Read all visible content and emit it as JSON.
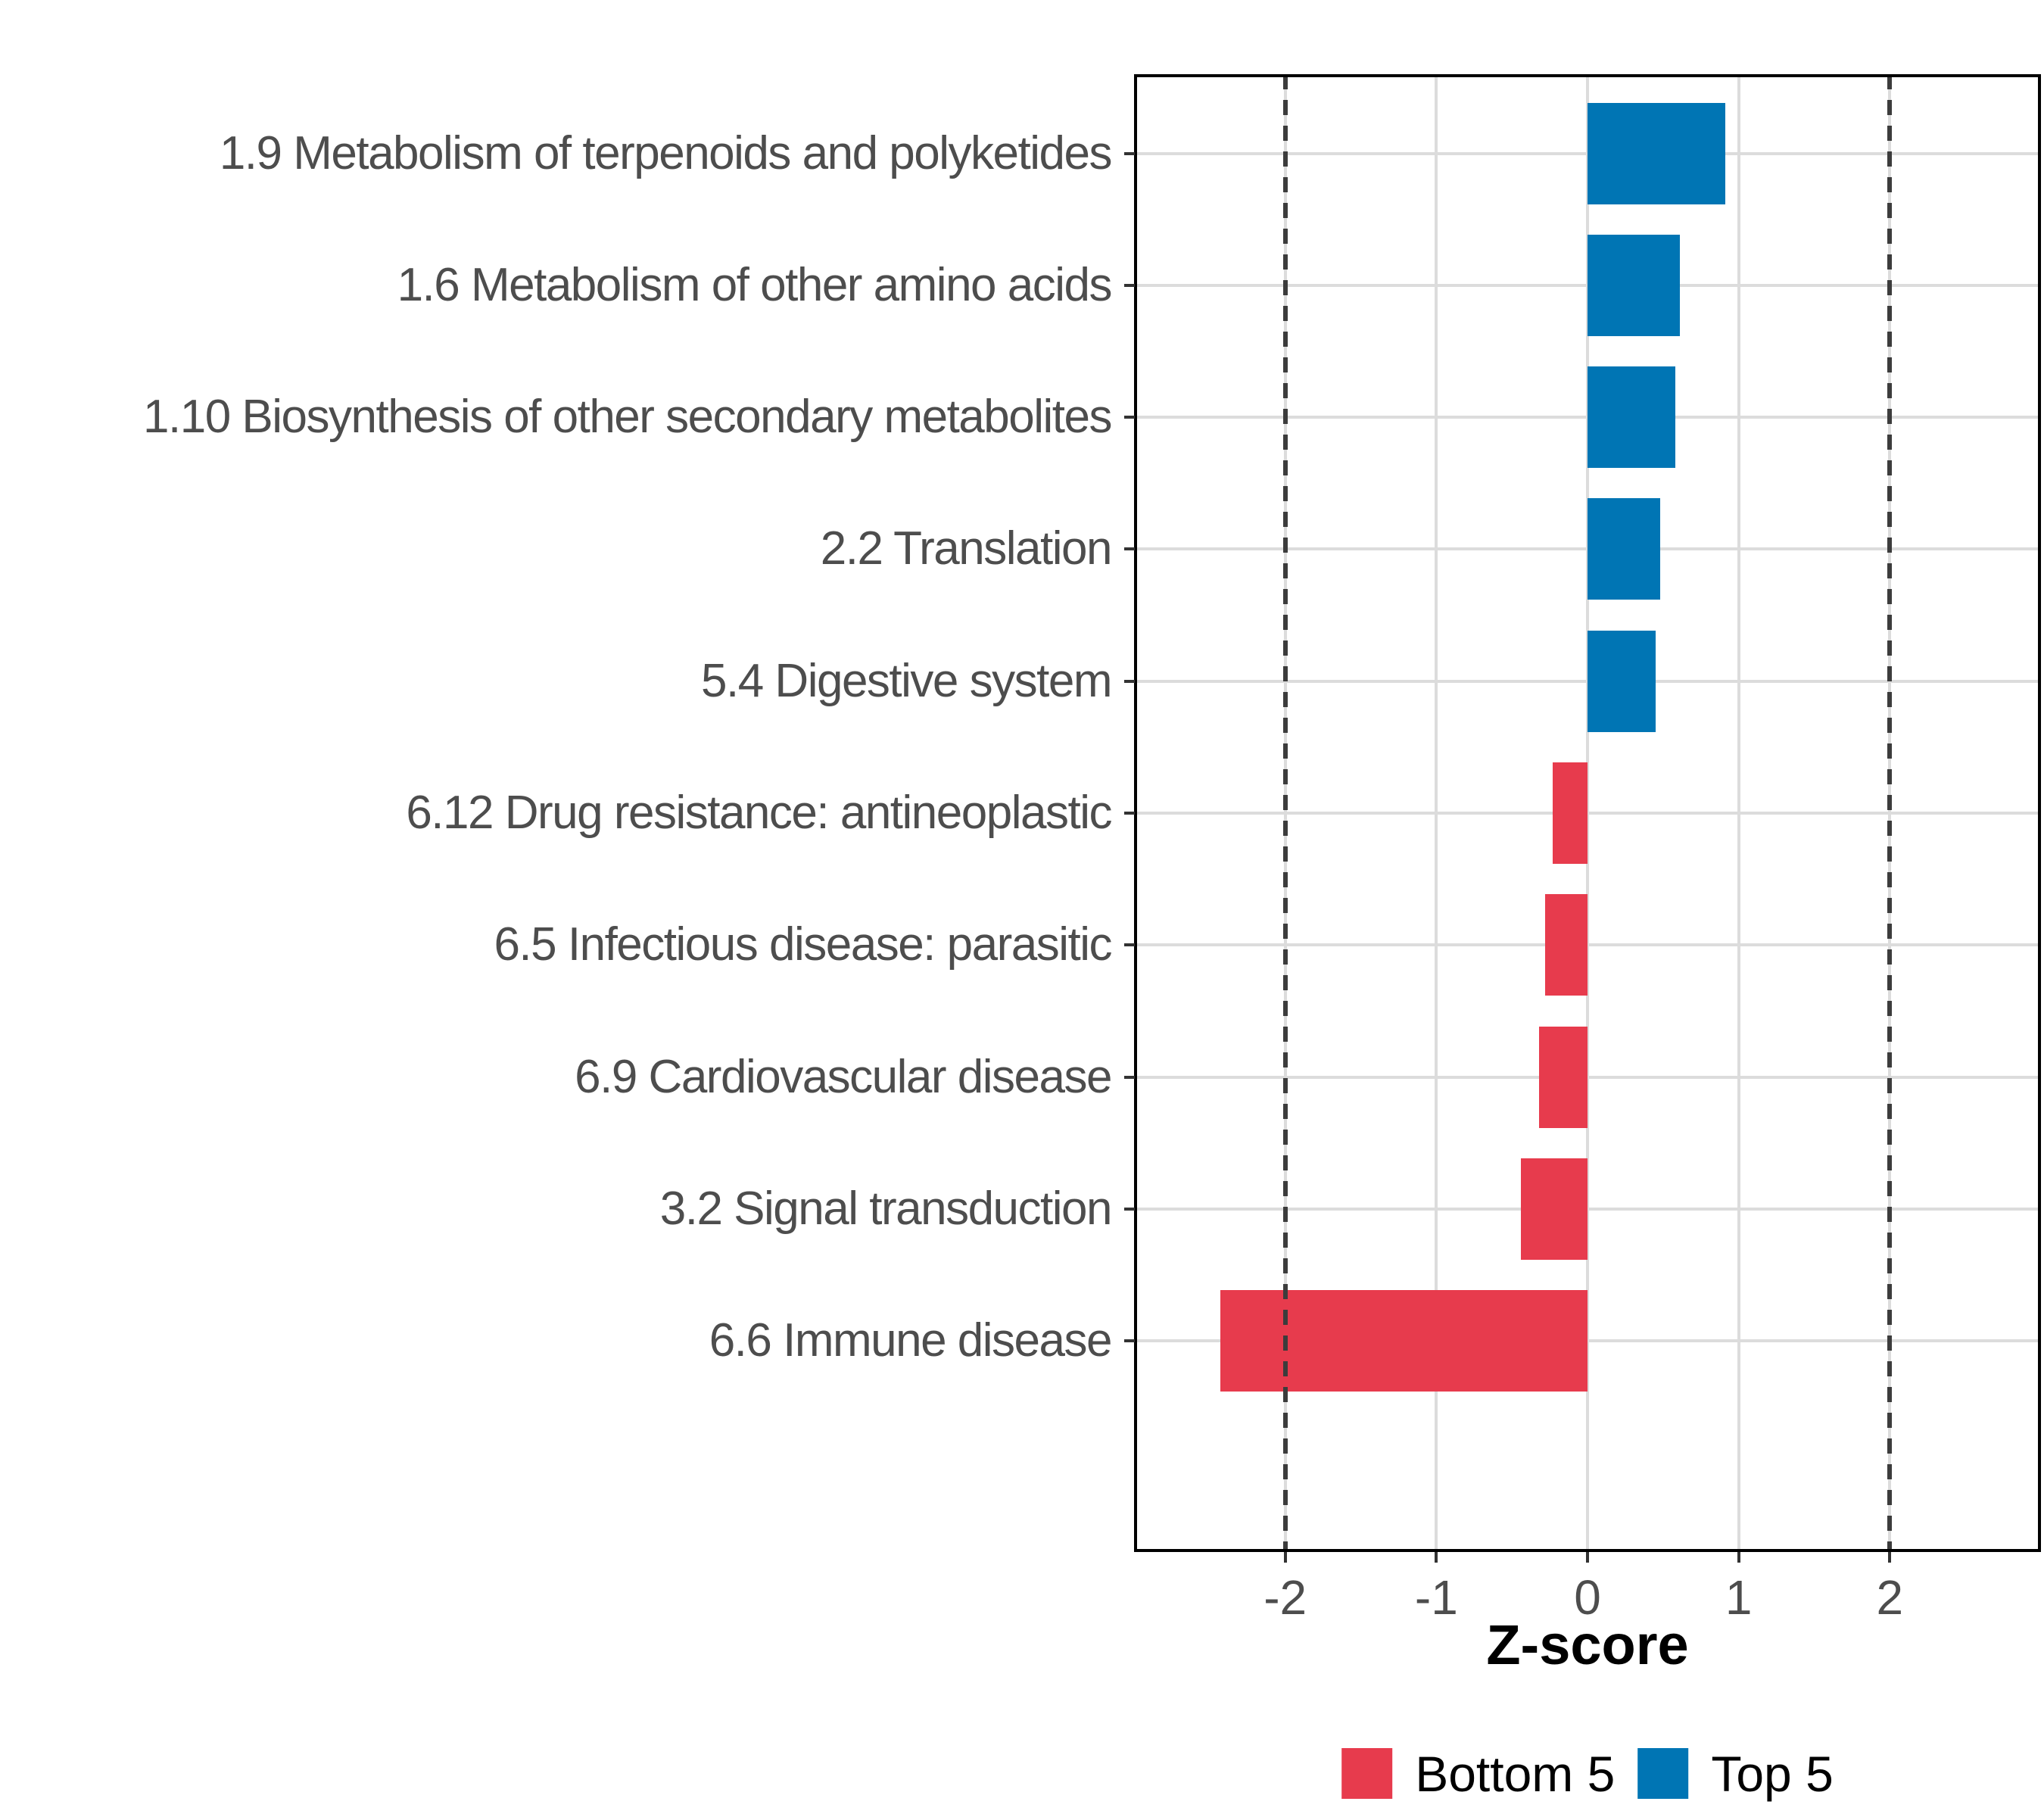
{
  "chart_data": {
    "type": "bar",
    "orientation": "horizontal",
    "title": "",
    "xlabel": "Z-score",
    "ylabel": "",
    "categories": [
      "1.9 Metabolism of terpenoids and polyketides",
      "1.6 Metabolism of other amino acids",
      "1.10 Biosynthesis of other secondary metabolites",
      "2.2 Translation",
      "5.4 Digestive system",
      "6.12 Drug resistance: antineoplastic",
      "6.5 Infectious disease: parasitic",
      "6.9 Cardiovascular disease",
      "3.2 Signal transduction",
      "6.6 Immune disease"
    ],
    "values": [
      0.91,
      0.61,
      0.58,
      0.48,
      0.45,
      -0.23,
      -0.28,
      -0.32,
      -0.44,
      -2.43
    ],
    "groups": [
      "Top 5",
      "Top 5",
      "Top 5",
      "Top 5",
      "Top 5",
      "Bottom 5",
      "Bottom 5",
      "Bottom 5",
      "Bottom 5",
      "Bottom 5"
    ],
    "xlim": [
      -3,
      3
    ],
    "x_ticks": [
      -2,
      -1,
      0,
      1,
      2
    ],
    "x_tick_labels": [
      "-2",
      "-1",
      "0",
      "1",
      "2"
    ],
    "reference_lines_dashed": [
      -2,
      2
    ],
    "grid": "major gridlines at x ticks and category centers",
    "legend_position": "bottom",
    "legend": [
      {
        "label": "Bottom 5",
        "color": "#E73B4D"
      },
      {
        "label": "Top 5",
        "color": "#0075B4"
      }
    ],
    "colors": {
      "bottom5": "#E73B4D",
      "top5": "#0075B4",
      "gridline": "#DCDCDC",
      "reference_line": "#3C3C3C",
      "tick_label": "#4D4D4D",
      "panel_border": "#000000"
    }
  }
}
